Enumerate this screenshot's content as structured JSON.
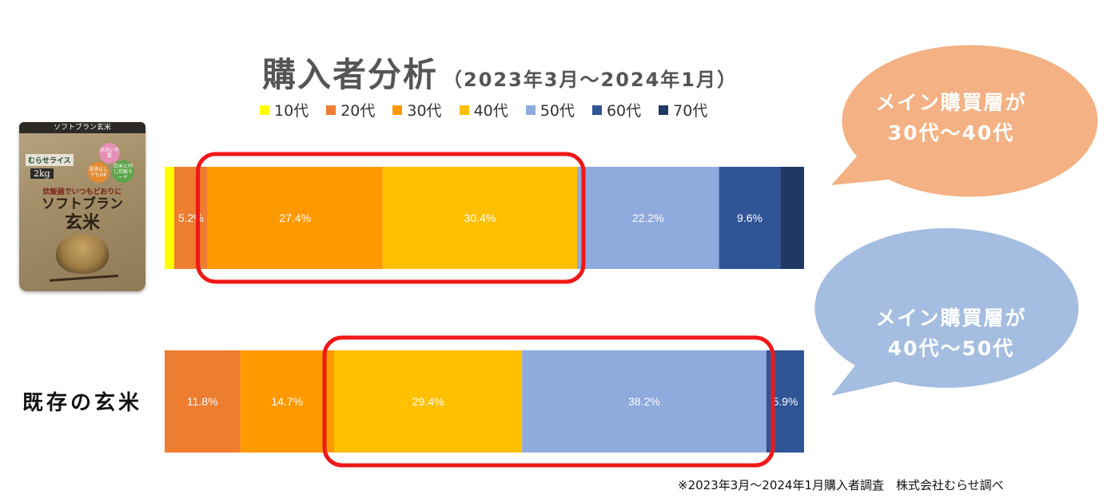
{
  "title": {
    "main": "購入者分析",
    "sub": "（2023年3月～2024年1月）"
  },
  "legend": [
    {
      "label": "10代",
      "color": "#FFFF00"
    },
    {
      "label": "20代",
      "color": "#ED7D31"
    },
    {
      "label": "30代",
      "color": "#FF9900"
    },
    {
      "label": "40代",
      "color": "#FFC000"
    },
    {
      "label": "50代",
      "color": "#8FAADC"
    },
    {
      "label": "60代",
      "color": "#2F5597"
    },
    {
      "label": "70代",
      "color": "#203864"
    }
  ],
  "product": {
    "top_text": "ソフトブラン玄米",
    "brand": "むらせライス",
    "weight": "2kg",
    "band": "炊飯器でいつもどおりに",
    "name_line1": "ソフトブラン",
    "name_line2": "玄米",
    "badge1": "水洗い不要",
    "badge2": "浸漬なしでもOK",
    "badge3": "白米と同じ炊飯モード"
  },
  "row_label": "既存の玄米",
  "bubbles": [
    {
      "line1": "メイン購買層が",
      "line2": "30代～40代",
      "color": "#F4B183"
    },
    {
      "line1": "メイン購買層が",
      "line2": "40代～50代",
      "color": "#A4BDE0"
    }
  ],
  "chart_data": {
    "type": "bar",
    "orientation": "horizontal-stacked-100",
    "categories": [
      "ソフトブラン玄米",
      "既存の玄米"
    ],
    "series": [
      {
        "name": "10代",
        "color": "#FFFF00",
        "values": [
          1.5,
          0.0
        ]
      },
      {
        "name": "20代",
        "color": "#ED7D31",
        "values": [
          5.2,
          11.8
        ]
      },
      {
        "name": "30代",
        "color": "#FF9900",
        "values": [
          27.4,
          14.7
        ]
      },
      {
        "name": "40代",
        "color": "#FFC000",
        "values": [
          30.4,
          29.4
        ]
      },
      {
        "name": "50代",
        "color": "#8FAADC",
        "values": [
          22.2,
          38.2
        ]
      },
      {
        "name": "60代",
        "color": "#2F5597",
        "values": [
          9.6,
          5.9
        ]
      },
      {
        "name": "70代",
        "color": "#203864",
        "values": [
          3.7,
          0.0
        ]
      }
    ],
    "data_labels": [
      [
        "",
        "5.2%",
        "27.4%",
        "30.4%",
        "22.2%",
        "9.6%",
        ""
      ],
      [
        "",
        "11.8%",
        "14.7%",
        "29.4%",
        "38.2%",
        "5.9%",
        ""
      ]
    ],
    "highlights": [
      {
        "row": 0,
        "from_series": 2,
        "to_series": 3
      },
      {
        "row": 1,
        "from_series": 3,
        "to_series": 4
      }
    ],
    "xlim": [
      0,
      100
    ],
    "legend_position": "top",
    "grid": false
  },
  "footnote": "※2023年3月～2024年1月購入者調査　株式会社むらせ調べ"
}
